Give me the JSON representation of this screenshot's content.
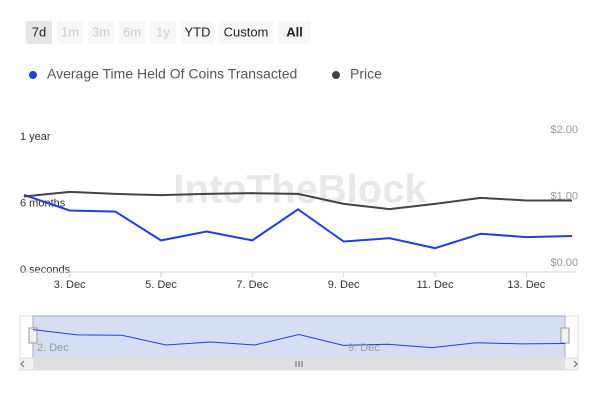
{
  "range_buttons": {
    "items": [
      "7d",
      "1m",
      "3m",
      "6m",
      "1y",
      "YTD",
      "Custom",
      "All"
    ],
    "selected": "7d",
    "disabled": [
      "1m",
      "3m",
      "6m",
      "1y"
    ],
    "bold": "All"
  },
  "watermark": "IntoTheBlock",
  "chart_data": {
    "type": "line",
    "categories": [
      null,
      "3. Dec",
      null,
      "5. Dec",
      null,
      "7. Dec",
      null,
      "9. Dec",
      null,
      "11. Dec",
      null,
      "13. Dec",
      null
    ],
    "series": [
      {
        "name": "Average Time Held Of Coins Transacted",
        "color": "#1f3fe0",
        "values": [
          6.5,
          5.1,
          5.0,
          2.4,
          3.2,
          2.4,
          5.2,
          2.3,
          2.6,
          1.7,
          3.0,
          2.7,
          2.8
        ]
      },
      {
        "name": "Price",
        "color": "#434348",
        "axis": "y2",
        "values": [
          1.06,
          1.13,
          1.1,
          1.08,
          1.1,
          1.11,
          1.1,
          0.95,
          0.87,
          0.95,
          1.04,
          1.0,
          1.0
        ]
      }
    ],
    "ylim": [
      0,
      12
    ],
    "yticks": [
      {
        "value": 0,
        "label": "0 seconds"
      },
      {
        "value": 6,
        "label": "6 months"
      },
      {
        "value": 12,
        "label": "1 year"
      }
    ],
    "y2lim": [
      0,
      2
    ],
    "y2ticks": [
      {
        "value": 0,
        "label": "$0.00"
      },
      {
        "value": 1,
        "label": "$1.00"
      },
      {
        "value": 2,
        "label": "$2.00"
      }
    ],
    "navigator": {
      "labels": [
        "2. Dec",
        "9. Dec"
      ]
    }
  }
}
